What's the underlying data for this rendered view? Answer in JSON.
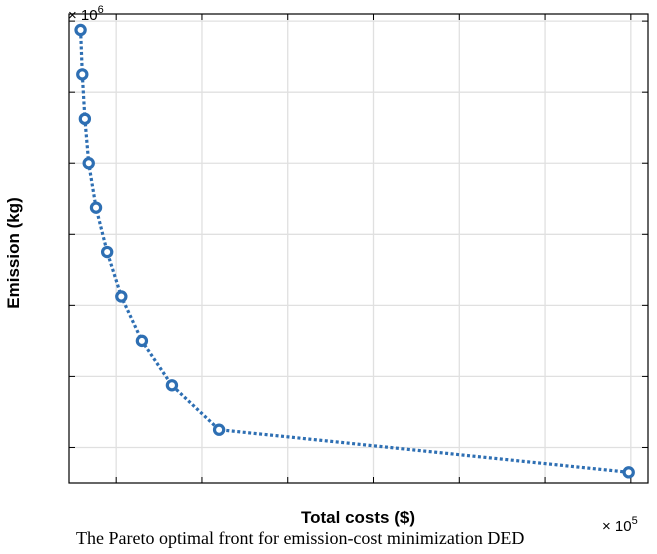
{
  "chart_data": {
    "type": "line",
    "xlabel": "Total costs ($)",
    "ylabel": "Emission (kg)",
    "x_multiplier_label": "× 10",
    "x_multiplier_exp": "5",
    "y_multiplier_label": "× 10",
    "y_multiplier_exp": "6",
    "xlim": [
      2.6,
      3.95
    ],
    "ylim": [
      0.3,
      1.62
    ],
    "x_ticks": [
      2.71,
      2.91,
      3.11,
      3.31,
      3.51,
      3.71,
      3.91
    ],
    "y_ticks": [
      0.4,
      0.6,
      0.8,
      1.0,
      1.2,
      1.4,
      1.6
    ],
    "grid": true,
    "legend": "none",
    "series": [
      {
        "color": "#2e6fb3",
        "line_style": "dotted",
        "marker": "circle",
        "x": [
          2.627,
          2.631,
          2.637,
          2.646,
          2.663,
          2.689,
          2.722,
          2.77,
          2.84,
          2.95,
          3.905
        ],
        "y": [
          1.575,
          1.45,
          1.325,
          1.2,
          1.075,
          0.95,
          0.825,
          0.7,
          0.575,
          0.45,
          0.33
        ]
      }
    ]
  },
  "caption": "The Pareto optimal front for emission-cost minimization DED"
}
